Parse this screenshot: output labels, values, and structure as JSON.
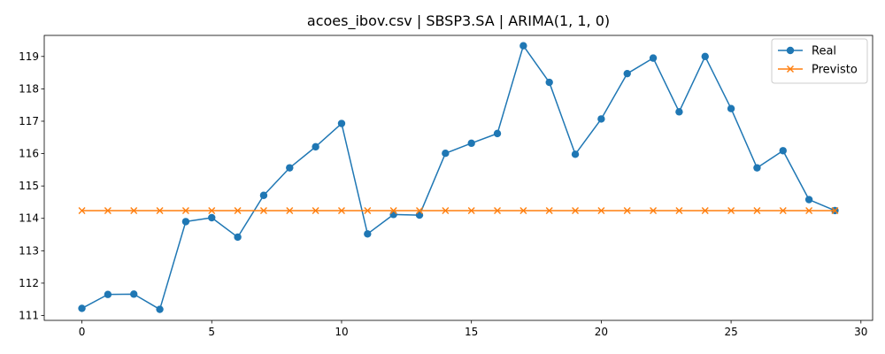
{
  "chart_data": {
    "type": "line",
    "title": "acoes_ibov.csv | SBSP3.SA | ARIMA(1, 1, 0)",
    "xlabel": "",
    "ylabel": "",
    "xlim": [
      -1.45,
      30.45
    ],
    "ylim": [
      110.85,
      119.65
    ],
    "xticks": [
      0,
      5,
      10,
      15,
      20,
      25,
      30
    ],
    "yticks": [
      111,
      112,
      113,
      114,
      115,
      116,
      117,
      118,
      119
    ],
    "grid": false,
    "legend_position": "top-right",
    "x": [
      0,
      1,
      2,
      3,
      4,
      5,
      6,
      7,
      8,
      9,
      10,
      11,
      12,
      13,
      14,
      15,
      16,
      17,
      18,
      19,
      20,
      21,
      22,
      23,
      24,
      25,
      26,
      27,
      28,
      29
    ],
    "series": [
      {
        "name": "Real",
        "color": "#1f77b4",
        "marker": "circle",
        "values": [
          111.22,
          111.65,
          111.66,
          111.19,
          113.9,
          114.02,
          113.42,
          114.71,
          115.56,
          116.21,
          116.93,
          113.52,
          114.12,
          114.1,
          116.01,
          116.32,
          116.62,
          119.33,
          118.2,
          115.98,
          117.07,
          118.47,
          118.95,
          117.29,
          119.0,
          117.39,
          115.56,
          116.09,
          114.58,
          114.24
        ]
      },
      {
        "name": "Previsto",
        "color": "#ff7f0e",
        "marker": "x",
        "values": [
          114.24,
          114.24,
          114.24,
          114.24,
          114.24,
          114.24,
          114.24,
          114.24,
          114.24,
          114.24,
          114.24,
          114.24,
          114.24,
          114.24,
          114.24,
          114.24,
          114.24,
          114.24,
          114.24,
          114.24,
          114.24,
          114.24,
          114.24,
          114.24,
          114.24,
          114.24,
          114.24,
          114.24,
          114.24,
          114.24
        ]
      }
    ]
  }
}
